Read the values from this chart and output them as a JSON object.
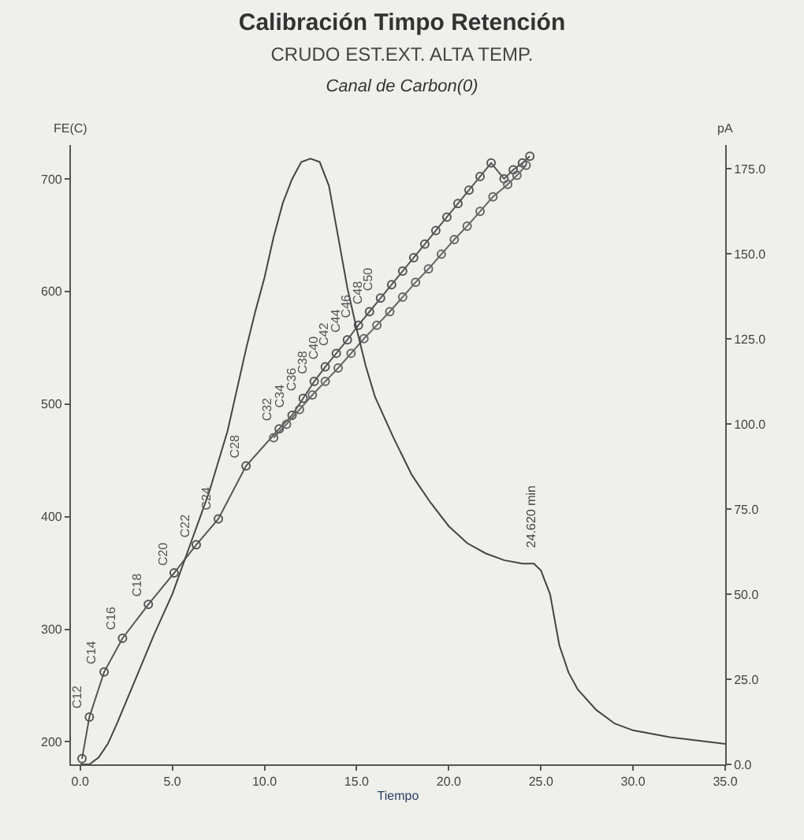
{
  "chart_data": {
    "type": "line",
    "title": "Calibración Timpo Retención",
    "subtitle": "CRUDO EST.EXT. ALTA TEMP.",
    "xlabel": "Tiempo",
    "ylabel": "FE(C)",
    "y2label": "pA",
    "annotations": [
      "Canal de Carbon(0)",
      "24.620 min"
    ],
    "xlim": [
      -0.5,
      35
    ],
    "xticks": [
      {
        "value": 0,
        "label": "0.0"
      },
      {
        "value": 5,
        "label": "5.0"
      },
      {
        "value": 10,
        "label": "10.0"
      },
      {
        "value": 15,
        "label": "15.0"
      },
      {
        "value": 20,
        "label": "20.0"
      },
      {
        "value": 25,
        "label": "25.0"
      },
      {
        "value": 30,
        "label": "30.0"
      },
      {
        "value": 35,
        "label": "35.0"
      }
    ],
    "ylim": [
      180,
      730
    ],
    "yticks": [
      200,
      300,
      400,
      500,
      600,
      700
    ],
    "y2lim": [
      0,
      182
    ],
    "y2ticks": [
      {
        "value": 0,
        "label": "0.0"
      },
      {
        "value": 25,
        "label": "25.0"
      },
      {
        "value": 50,
        "label": "50.0"
      },
      {
        "value": 75,
        "label": "75.0"
      },
      {
        "value": 100,
        "label": "100.0"
      },
      {
        "value": 125,
        "label": "125.0"
      },
      {
        "value": 150,
        "label": "150.0"
      },
      {
        "value": 175,
        "label": "175.0"
      }
    ],
    "grid": false,
    "line_style": "solid",
    "series": [
      {
        "color": "#555555",
        "marker": "circle",
        "x": [
          0.1,
          0.5,
          1.3,
          2.3,
          3.7,
          5.1,
          6.3,
          7.5,
          9.0,
          10.8,
          11.5,
          12.1,
          12.7,
          13.3,
          13.9,
          14.5,
          15.1,
          15.7,
          16.3,
          16.9,
          17.5,
          18.1,
          18.7,
          19.3,
          19.9,
          20.5,
          21.1,
          21.7,
          22.3,
          23.0,
          23.5,
          24.0,
          24.4
        ],
        "values": [
          185,
          222,
          262,
          292,
          322,
          350,
          375,
          398,
          445,
          478,
          490,
          505,
          520,
          533,
          545,
          557,
          570,
          582,
          594,
          606,
          618,
          630,
          642,
          654,
          666,
          678,
          690,
          702,
          714,
          700,
          708,
          714,
          720
        ],
        "value_labels": [
          null,
          "C12",
          "C14",
          "C16",
          "C18",
          "C20",
          "C22",
          "C24",
          "C28",
          "C32",
          "C34",
          "C36",
          "C38",
          "C40",
          "C42",
          "C44",
          "C46",
          "C48",
          "C50",
          null,
          null,
          null,
          null,
          null,
          null,
          null,
          null,
          null,
          null,
          null,
          null,
          null,
          null
        ]
      },
      {
        "color": "#666666",
        "marker": "circle",
        "x": [
          10.5,
          11.2,
          11.9,
          12.6,
          13.3,
          14.0,
          14.7,
          15.4,
          16.1,
          16.8,
          17.5,
          18.2,
          18.9,
          19.6,
          20.3,
          21.0,
          21.7,
          22.4,
          23.2,
          23.7,
          24.2
        ],
        "values": [
          470,
          482,
          495,
          508,
          520,
          532,
          545,
          558,
          570,
          582,
          595,
          608,
          620,
          633,
          646,
          658,
          671,
          684,
          695,
          703,
          712
        ]
      },
      {
        "color": "#444444",
        "marker": "none",
        "axis": "y2",
        "x": [
          0,
          0.5,
          1,
          1.5,
          2,
          3,
          4,
          5,
          6,
          7,
          8,
          8.5,
          9,
          9.5,
          10,
          10.5,
          11,
          11.5,
          12,
          12.5,
          13,
          13.5,
          14,
          14.5,
          15,
          15.5,
          16,
          17,
          18,
          19,
          20,
          21,
          22,
          23,
          24,
          24.62,
          25,
          25.5,
          26,
          26.5,
          27,
          28,
          29,
          30,
          32,
          35
        ],
        "values": [
          0,
          0,
          2,
          6,
          12,
          25,
          38,
          50,
          65,
          80,
          98,
          110,
          122,
          133,
          143,
          155,
          165,
          172,
          177,
          178,
          177,
          170,
          155,
          140,
          128,
          117,
          108,
          96,
          85,
          77,
          70,
          65,
          62,
          60,
          59,
          59,
          57,
          50,
          35,
          27,
          22,
          16,
          12,
          10,
          8,
          6
        ]
      }
    ]
  }
}
